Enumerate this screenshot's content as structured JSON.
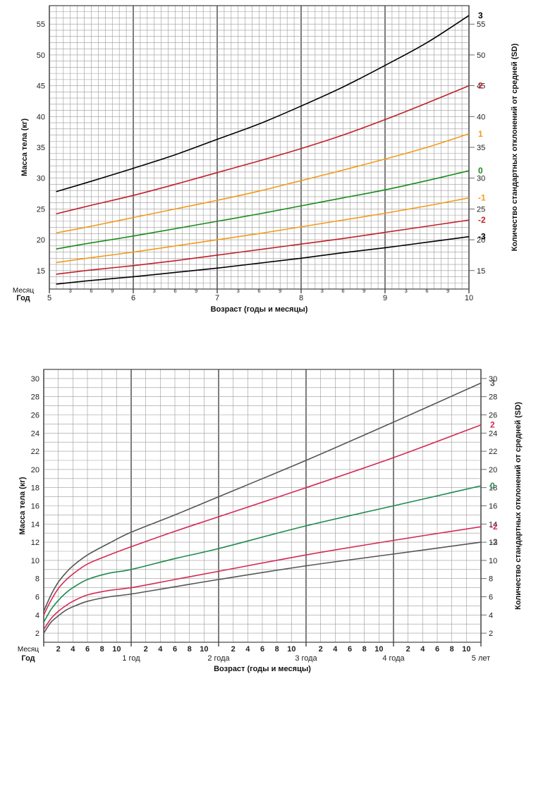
{
  "chart_data": [
    {
      "type": "line",
      "xlabel": "Возраст (годы и месяцы)",
      "ylabel": "Масса тела (кг)",
      "ylabel_right": "Количество стандартных отклонений от средней (SD)",
      "row_label_month": "Месяц",
      "row_label_year": "Год",
      "xlim": [
        5,
        10
      ],
      "ylim": [
        12,
        58
      ],
      "y_ticks": [
        15,
        20,
        25,
        30,
        35,
        40,
        45,
        50,
        55
      ],
      "year_ticks": [
        {
          "x": 5,
          "label": "5"
        },
        {
          "x": 6,
          "label": "6"
        },
        {
          "x": 7,
          "label": "7"
        },
        {
          "x": 8,
          "label": "8"
        },
        {
          "x": 9,
          "label": "9"
        },
        {
          "x": 10,
          "label": "10"
        }
      ],
      "month_ticks": [
        "3",
        "6",
        "9"
      ],
      "grid": true,
      "x": [
        5.08,
        5.5,
        6,
        6.5,
        7,
        7.5,
        8,
        8.5,
        9,
        9.5,
        10
      ],
      "series": [
        {
          "name": "3",
          "color": "#000000",
          "values": [
            27.8,
            29.5,
            31.6,
            33.8,
            36.3,
            38.8,
            41.7,
            44.8,
            48.3,
            52.0,
            56.4
          ]
        },
        {
          "name": "2",
          "color": "#c0202a",
          "values": [
            24.2,
            25.6,
            27.2,
            29.0,
            30.9,
            32.8,
            34.8,
            37.0,
            39.5,
            42.2,
            45.0
          ]
        },
        {
          "name": "1",
          "color": "#f39a1a",
          "values": [
            21.1,
            22.2,
            23.6,
            25.0,
            26.4,
            27.9,
            29.6,
            31.3,
            33.1,
            35.0,
            37.2
          ]
        },
        {
          "name": "0",
          "color": "#1a8a1a",
          "values": [
            18.5,
            19.5,
            20.6,
            21.8,
            23.0,
            24.2,
            25.5,
            26.8,
            28.1,
            29.6,
            31.2
          ]
        },
        {
          "name": "-1",
          "color": "#f39a1a",
          "values": [
            16.3,
            17.1,
            18.0,
            19.0,
            20.0,
            21.0,
            22.1,
            23.2,
            24.3,
            25.5,
            26.8
          ]
        },
        {
          "name": "-2",
          "color": "#c0202a",
          "values": [
            14.4,
            15.1,
            15.8,
            16.6,
            17.5,
            18.4,
            19.3,
            20.2,
            21.2,
            22.2,
            23.2
          ]
        },
        {
          "name": "-3",
          "color": "#000000",
          "values": [
            12.8,
            13.4,
            14.0,
            14.7,
            15.4,
            16.2,
            17.0,
            17.9,
            18.7,
            19.6,
            20.5
          ]
        }
      ]
    },
    {
      "type": "line",
      "xlabel": "Возраст (годы и месяцы)",
      "ylabel": "Масса тела (кг)",
      "ylabel_right": "Количество стандартных отклонений от средней (SD)",
      "row_label_month": "Месяц",
      "row_label_year": "Год",
      "xlim": [
        0,
        60
      ],
      "ylim": [
        1,
        31
      ],
      "y_ticks": [
        2,
        4,
        6,
        8,
        10,
        12,
        14,
        16,
        18,
        20,
        22,
        24,
        26,
        28,
        30
      ],
      "year_ticks": [
        {
          "x": 12,
          "label": "1 год"
        },
        {
          "x": 24,
          "label": "2 года"
        },
        {
          "x": 36,
          "label": "3 года"
        },
        {
          "x": 48,
          "label": "4 года"
        },
        {
          "x": 60,
          "label": "5 лет"
        }
      ],
      "month_ticks": [
        "2",
        "4",
        "6",
        "8",
        "10"
      ],
      "grid": true,
      "x": [
        0,
        1,
        2,
        3,
        4,
        6,
        9,
        12,
        18,
        24,
        36,
        48,
        60
      ],
      "series": [
        {
          "name": "3",
          "color": "#555555",
          "values": [
            4.4,
            6.2,
            7.6,
            8.6,
            9.4,
            10.6,
            11.9,
            13.1,
            15.0,
            17.0,
            21.0,
            25.2,
            29.5
          ]
        },
        {
          "name": "2",
          "color": "#d42a55",
          "values": [
            4.0,
            5.6,
            6.9,
            7.8,
            8.5,
            9.6,
            10.6,
            11.5,
            13.2,
            14.8,
            18.0,
            21.3,
            24.9
          ]
        },
        {
          "name": "0",
          "color": "#1f8a4c",
          "values": [
            3.2,
            4.6,
            5.6,
            6.4,
            7.0,
            7.9,
            8.6,
            9.0,
            10.2,
            11.3,
            13.8,
            16.0,
            18.2
          ]
        },
        {
          "name": "-2",
          "color": "#d42a55",
          "values": [
            2.4,
            3.6,
            4.4,
            5.0,
            5.5,
            6.2,
            6.7,
            7.0,
            7.9,
            8.8,
            10.6,
            12.2,
            13.7
          ]
        },
        {
          "name": "-3",
          "color": "#555555",
          "values": [
            2.0,
            3.2,
            3.9,
            4.5,
            4.9,
            5.5,
            6.0,
            6.3,
            7.1,
            7.9,
            9.4,
            10.7,
            12.0
          ]
        }
      ]
    }
  ]
}
